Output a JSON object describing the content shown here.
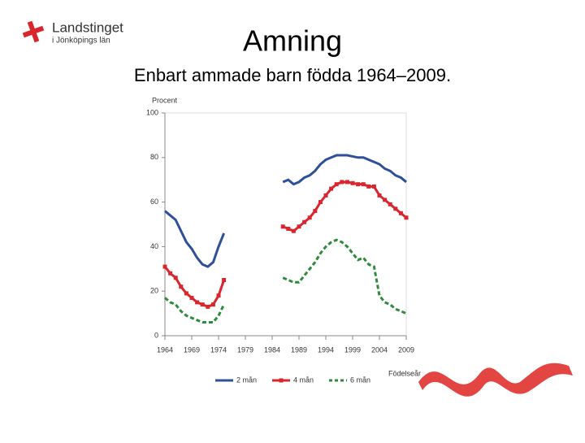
{
  "logo": {
    "name": "Landstinget",
    "subtitle": "i Jönköpings län"
  },
  "chart_data": {
    "type": "line",
    "title": "Amning",
    "subtitle": "Enbart ammade barn födda 1964–2009.",
    "y_label": "Procent",
    "x_label": "Födelseår",
    "x": [
      1964,
      1965,
      1966,
      1967,
      1968,
      1969,
      1970,
      1971,
      1972,
      1973,
      1974,
      1975,
      1976,
      1977,
      1978,
      1979,
      1980,
      1981,
      1982,
      1983,
      1984,
      1985,
      1986,
      1987,
      1988,
      1989,
      1990,
      1991,
      1992,
      1993,
      1994,
      1995,
      1996,
      1997,
      1998,
      1999,
      2000,
      2001,
      2002,
      2003,
      2004,
      2005,
      2006,
      2007,
      2008,
      2009
    ],
    "series": [
      {
        "name": "2 mån",
        "color": "#2e4f9a",
        "style": "solid",
        "marker": "none",
        "values": [
          56,
          54,
          52,
          47,
          42,
          39,
          35,
          32,
          31,
          33,
          40,
          46,
          null,
          null,
          null,
          null,
          null,
          null,
          null,
          null,
          null,
          null,
          69,
          70,
          68,
          69,
          71,
          72,
          74,
          77,
          79,
          80,
          81,
          81,
          81,
          80.5,
          80,
          80,
          79,
          78,
          77,
          75,
          74,
          72,
          71,
          69
        ]
      },
      {
        "name": "4 mån",
        "color": "#d9262e",
        "style": "solid",
        "marker": "square",
        "values": [
          31,
          28,
          26,
          22,
          19,
          17,
          15,
          14,
          13,
          14,
          18,
          25,
          null,
          null,
          null,
          null,
          null,
          null,
          null,
          null,
          null,
          null,
          49,
          48,
          47,
          49,
          51,
          53,
          56,
          60,
          63,
          66,
          68,
          69,
          69,
          68.5,
          68,
          68,
          67,
          67,
          63,
          61,
          59,
          57,
          55,
          53
        ]
      },
      {
        "name": "6 mån",
        "color": "#2e8b3a",
        "style": "dashed",
        "marker": "none",
        "values": [
          17,
          15,
          14,
          11,
          9,
          8,
          7,
          6,
          6,
          6,
          9,
          14,
          null,
          null,
          null,
          null,
          null,
          null,
          null,
          null,
          null,
          null,
          26,
          25,
          24,
          24,
          27,
          30,
          33,
          37,
          40,
          42,
          43,
          42,
          40,
          37,
          34,
          35,
          32,
          31,
          18,
          15,
          14,
          12,
          11,
          10
        ]
      }
    ],
    "xlim": [
      1964,
      2009
    ],
    "xticks": [
      1964,
      1969,
      1974,
      1979,
      1984,
      1989,
      1994,
      1999,
      2004,
      2009
    ],
    "ylim": [
      0,
      100
    ],
    "yticks": [
      0,
      20,
      40,
      60,
      80,
      100
    ],
    "grid": false,
    "legend": "bottom"
  }
}
